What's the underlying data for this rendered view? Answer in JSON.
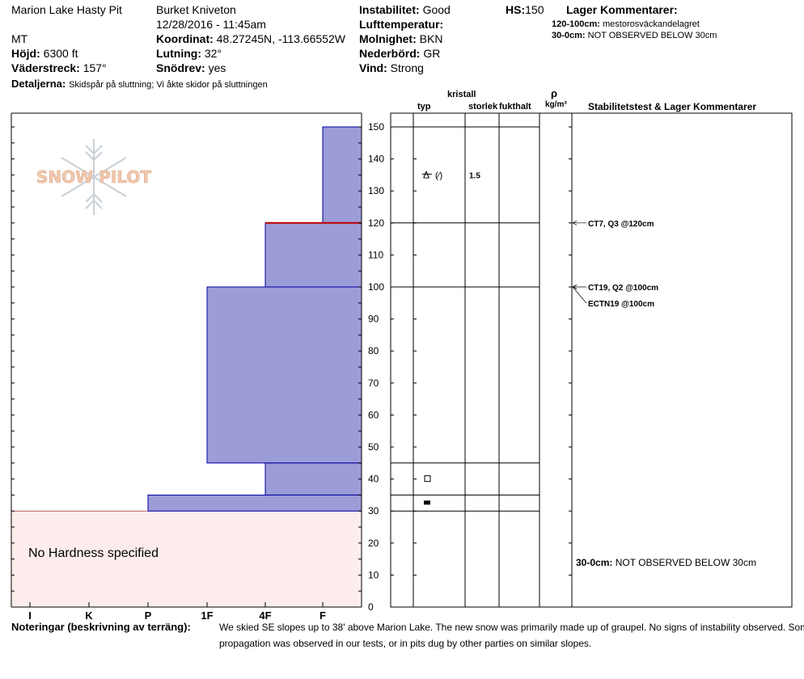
{
  "header": {
    "location": "Marion Lake Hasty Pit",
    "state": "MT",
    "observer": "Burket Kniveton",
    "datetime": "12/28/2016 - 11:45am",
    "elevation_label": "Höjd:",
    "elevation": "6300 ft",
    "aspect_label": "Väderstreck:",
    "aspect": "157°",
    "details_label": "Detaljerna:",
    "details": "Skidspår på sluttning;  Vi åkte skidor på sluttningen",
    "coord_label": "Koordinat:",
    "coord": "48.27245N, -113.66552W",
    "slope_label": "Lutning:",
    "slope": "32°",
    "drift_label": "Snödrev:",
    "drift": "yes",
    "instability_label": "Instabilitet:",
    "instability": "Good",
    "airtemp_label": "Lufttemperatur:",
    "sky_label": "Molnighet:",
    "sky": "BKN",
    "precip_label": "Nederbörd:",
    "precip": "GR",
    "wind_label": "Vind:",
    "wind": "Strong",
    "hs_label": "HS:",
    "hs": "150",
    "layer_comments_title": "Lager Kommentarer:",
    "layer_comments": [
      {
        "range": "120-100cm:",
        "text": "mestorosväckandelagret"
      },
      {
        "range": "30-0cm:",
        "text": "NOT OBSERVED BELOW 30cm"
      }
    ]
  },
  "logo_text": "SNOW PILOT",
  "columns": {
    "kristall": "kristall",
    "typ": "typ",
    "storlek": "storlek",
    "fukthalt": "fukthalt",
    "rho": "ρ",
    "density_unit": "kg/m³",
    "stability": "Stabilitetstest & Lager Kommentarer"
  },
  "no_hardness": "No Hardness specified",
  "notes_label": "Noteringar (beskrivning av terräng):",
  "notes_text": "We skied SE slopes up to 38' above Marion Lake. The new snow was primarily made up of graupel. No signs of instability observed. Some propagation was observed in our tests, or in pits dug by other parties on similar slopes.",
  "colors": {
    "layer_fill": "#9c9cd8",
    "layer_stroke": "#0000a0",
    "weak_layer": "#c00000",
    "no_hardness_fill": "#fdecec",
    "logo": "#f0c8b0",
    "flake": "#c8d0d8"
  },
  "chart_data": {
    "type": "bar",
    "orientation": "horizontal-layers",
    "y_axis": {
      "range": [
        0,
        150
      ],
      "ticks": [
        0,
        10,
        20,
        30,
        40,
        50,
        60,
        70,
        80,
        90,
        100,
        110,
        120,
        130,
        140,
        150
      ],
      "unit": "cm"
    },
    "x_axis": {
      "hardness_ticks": [
        "I",
        "K",
        "P",
        "1F",
        "4F",
        "F"
      ]
    },
    "layers": [
      {
        "top": 150,
        "bottom": 120,
        "hardness_index": 5
      },
      {
        "top": 120,
        "bottom": 100,
        "hardness_index": 4
      },
      {
        "top": 100,
        "bottom": 45,
        "hardness_index": 3
      },
      {
        "top": 45,
        "bottom": 35,
        "hardness_index": 4
      },
      {
        "top": 35,
        "bottom": 30,
        "hardness_index": 2
      }
    ],
    "weak_layer_cm": 120,
    "no_hardness_range": [
      0,
      30
    ],
    "crystals": [
      {
        "depth": 135,
        "symbol": "graupel",
        "glyph": "Δ̶ (⁄)",
        "size": "1.5"
      },
      {
        "depth": 40,
        "symbol": "faceted",
        "glyph": "□"
      },
      {
        "depth": 32.5,
        "symbol": "ice",
        "glyph": "■"
      }
    ],
    "layer_lines_cm": [
      150,
      120,
      100,
      45,
      35,
      30
    ],
    "tests": [
      {
        "depth": 120,
        "label": "CT7, Q3 @120cm"
      },
      {
        "depth": 100,
        "label": "CT19, Q2 @100cm"
      },
      {
        "depth": 100,
        "label": "ECTN19 @100cm"
      }
    ],
    "comments": [
      {
        "range": "30-0cm:",
        "text": "NOT OBSERVED BELOW 30cm"
      }
    ]
  }
}
